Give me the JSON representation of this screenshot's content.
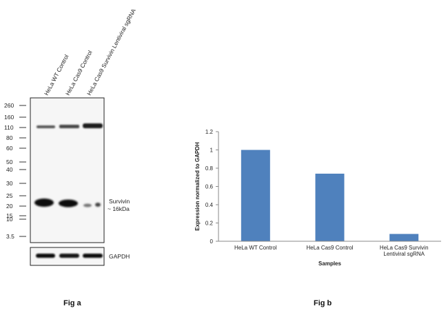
{
  "figure_a": {
    "caption": "Fig a",
    "lanes": [
      "HeLa WT Control",
      "HeLa Cas9 Control",
      "HeLa Cas9 Survivin Lentiviral sgRNA"
    ],
    "markers": [
      "260",
      "160",
      "110",
      "80",
      "60",
      "50",
      "40",
      "30",
      "25",
      "20",
      "15",
      "10",
      "3.5"
    ],
    "band_label_line1": "Survivin",
    "band_label_line2": "~ 16kDa",
    "loading_control": "GAPDH"
  },
  "figure_b": {
    "caption": "Fig b"
  },
  "chart_data": {
    "type": "bar",
    "categories": [
      "HeLa WT Control",
      "HeLa Cas9 Control",
      "HeLa Cas9 Survivin Lentiviral sgRNA"
    ],
    "category_lines": [
      [
        "HeLa WT Control"
      ],
      [
        "HeLa Cas9 Control"
      ],
      [
        "HeLa Cas9 Survivin",
        "Lentiviral sgRNA"
      ]
    ],
    "values": [
      1.0,
      0.74,
      0.08
    ],
    "title": "",
    "xlabel": "Samples",
    "ylabel": "Expression  normalized to GAPDH",
    "ylim": [
      0,
      1.2
    ],
    "yticks": [
      "0",
      "0.2",
      "0.4",
      "0.6",
      "0.8",
      "1",
      "1.2"
    ],
    "bar_color": "#4f81bd",
    "grid": false
  }
}
